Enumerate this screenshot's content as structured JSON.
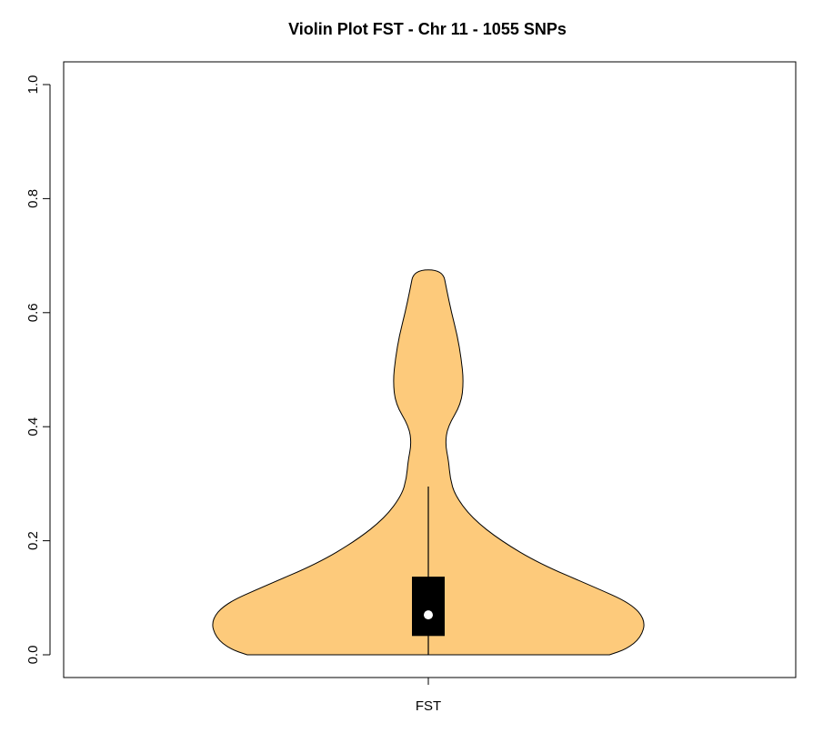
{
  "chart_data": {
    "type": "violin",
    "title": "Violin Plot FST - Chr 11 - 1055 SNPs",
    "xlabel": "",
    "ylabel": "",
    "categories": [
      "FST"
    ],
    "ylim": [
      0,
      1.0
    ],
    "y_ticks": [
      "0.0",
      "0.2",
      "0.4",
      "0.6",
      "0.8",
      "1.0"
    ],
    "grid": false,
    "colors": {
      "violin_fill": "#FDCA7B",
      "outline": "#000000",
      "box": "#000000",
      "median": "#ffffff"
    },
    "series": [
      {
        "category": "FST",
        "min": 0.0,
        "max": 0.675,
        "q1": 0.033,
        "median": 0.07,
        "q3": 0.137,
        "whisker_low": 0.0,
        "whisker_high": 0.295,
        "density_profile": [
          {
            "y": 0.0,
            "half_width": 0.375
          },
          {
            "y": 0.01,
            "half_width": 0.41
          },
          {
            "y": 0.03,
            "half_width": 0.44
          },
          {
            "y": 0.06,
            "half_width": 0.45
          },
          {
            "y": 0.09,
            "half_width": 0.42
          },
          {
            "y": 0.12,
            "half_width": 0.34
          },
          {
            "y": 0.16,
            "half_width": 0.23
          },
          {
            "y": 0.2,
            "half_width": 0.15
          },
          {
            "y": 0.24,
            "half_width": 0.09
          },
          {
            "y": 0.28,
            "half_width": 0.055
          },
          {
            "y": 0.31,
            "half_width": 0.045
          },
          {
            "y": 0.34,
            "half_width": 0.042
          },
          {
            "y": 0.37,
            "half_width": 0.035
          },
          {
            "y": 0.4,
            "half_width": 0.04
          },
          {
            "y": 0.44,
            "half_width": 0.068
          },
          {
            "y": 0.48,
            "half_width": 0.073
          },
          {
            "y": 0.52,
            "half_width": 0.068
          },
          {
            "y": 0.56,
            "half_width": 0.06
          },
          {
            "y": 0.6,
            "half_width": 0.048
          },
          {
            "y": 0.64,
            "half_width": 0.038
          },
          {
            "y": 0.675,
            "half_width": 0.03
          }
        ]
      }
    ]
  }
}
